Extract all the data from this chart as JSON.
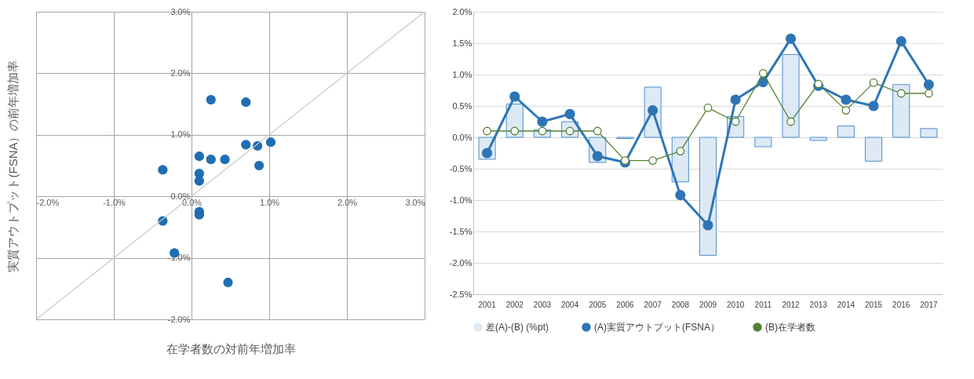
{
  "chart_data": [
    {
      "type": "scatter",
      "xlabel": "在学者数の対前年増加率",
      "ylabel": "実質アウトプット(FSNA）の前年増加率",
      "xlim": [
        -2,
        3
      ],
      "ylim": [
        -2,
        3
      ],
      "xticks": [
        {
          "value": -2,
          "label": "-2.0%"
        },
        {
          "value": -1,
          "label": "-1.0%"
        },
        {
          "value": 0,
          "label": "0.0%"
        },
        {
          "value": 1,
          "label": "1.0%"
        },
        {
          "value": 2,
          "label": "2.0%"
        },
        {
          "value": 3,
          "label": "3.0%"
        }
      ],
      "yticks": [
        {
          "value": -2,
          "label": "-2.0%"
        },
        {
          "value": -1,
          "label": "-1.0%"
        },
        {
          "value": 0,
          "label": "0.0%"
        },
        {
          "value": 1,
          "label": "1.0%"
        },
        {
          "value": 2,
          "label": "2.0%"
        },
        {
          "value": 3,
          "label": "3.0%"
        }
      ],
      "grid": true,
      "series": [
        {
          "marker": "circle",
          "color": "#1f6eb4",
          "x": [
            0.1,
            0.1,
            0.1,
            0.1,
            0.1,
            -0.37,
            -0.37,
            -0.22,
            0.47,
            0.25,
            1.02,
            0.25,
            0.85,
            0.43,
            0.87,
            0.7,
            0.7
          ],
          "values": [
            -0.25,
            0.65,
            0.25,
            0.37,
            -0.3,
            -0.4,
            0.43,
            -0.92,
            -1.4,
            0.6,
            0.88,
            1.57,
            0.82,
            0.6,
            0.5,
            1.53,
            0.84
          ]
        },
        {
          "type": "line",
          "color": "#c8c8c8",
          "x": [
            -2,
            3
          ],
          "values": [
            -2,
            3
          ]
        }
      ]
    },
    {
      "type": "bar",
      "categories": [
        "2001",
        "2002",
        "2003",
        "2004",
        "2005",
        "2006",
        "2007",
        "2008",
        "2009",
        "2010",
        "2011",
        "2012",
        "2013",
        "2014",
        "2015",
        "2016",
        "2017"
      ],
      "ylim": [
        -2.5,
        2
      ],
      "yticks": [
        {
          "value": -2.5,
          "label": "-2.5%"
        },
        {
          "value": -2,
          "label": "-2.0%"
        },
        {
          "value": -1.5,
          "label": "-1.5%"
        },
        {
          "value": -1,
          "label": "-1.0%"
        },
        {
          "value": -0.5,
          "label": "-0.5%"
        },
        {
          "value": 0,
          "label": "0.0%"
        },
        {
          "value": 0.5,
          "label": "0.5%"
        },
        {
          "value": 1,
          "label": "1.0%"
        },
        {
          "value": 1.5,
          "label": "1.5%"
        },
        {
          "value": 2,
          "label": "2.0%"
        }
      ],
      "grid": "y",
      "legend": "bottom",
      "marker": "circle",
      "series": [
        {
          "name": "差(A)-(B) (%pt)",
          "color": "#dde9f5",
          "values": [
            -0.35,
            0.53,
            0.12,
            0.25,
            -0.4,
            -0.02,
            0.8,
            -0.71,
            -1.88,
            0.33,
            -0.15,
            1.32,
            -0.05,
            0.18,
            -0.38,
            0.84,
            0.14
          ]
        },
        {
          "type": "line",
          "name": "(A)実質アウトプット(FSNA）",
          "color": "#2e75b6",
          "values": [
            -0.25,
            0.65,
            0.25,
            0.37,
            -0.3,
            -0.4,
            0.43,
            -0.92,
            -1.4,
            0.6,
            0.88,
            1.57,
            0.82,
            0.6,
            0.5,
            1.53,
            0.84
          ]
        },
        {
          "type": "line",
          "name": "(B)在学者数",
          "color": "#548235",
          "values": [
            0.1,
            0.1,
            0.1,
            0.1,
            0.1,
            -0.37,
            -0.37,
            -0.22,
            0.47,
            0.25,
            1.02,
            0.25,
            0.85,
            0.43,
            0.87,
            0.7,
            0.7
          ]
        }
      ]
    }
  ]
}
